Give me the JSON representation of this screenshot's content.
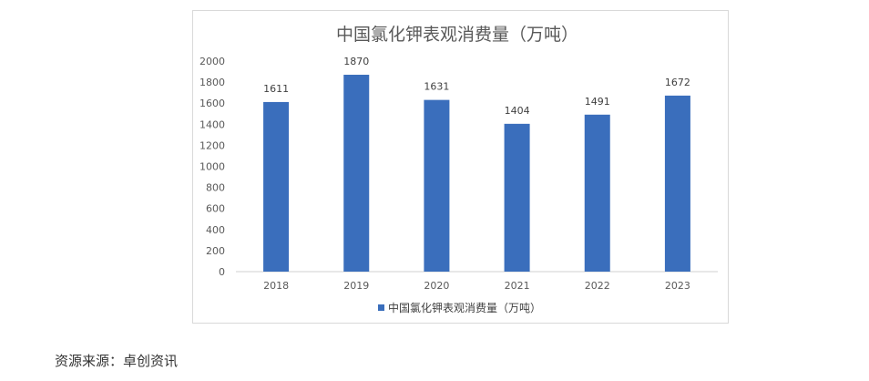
{
  "chart_data": {
    "type": "bar",
    "title": "中国氯化钾表观消费量（万吨）",
    "categories": [
      "2018",
      "2019",
      "2020",
      "2021",
      "2022",
      "2023"
    ],
    "series": [
      {
        "name": "中国氯化钾表观消费量（万吨）",
        "values": [
          1611,
          1870,
          1631,
          1404,
          1491,
          1672
        ]
      }
    ],
    "ylim": [
      0,
      2000
    ],
    "yticks": [
      0,
      200,
      400,
      600,
      800,
      1000,
      1200,
      1400,
      1600,
      1800,
      2000
    ],
    "xlabel": "",
    "ylabel": "",
    "grid": false,
    "legend_position": "bottom",
    "bar_color": "#3a6ebc"
  },
  "footer": {
    "source": "资源来源：卓创资讯"
  }
}
